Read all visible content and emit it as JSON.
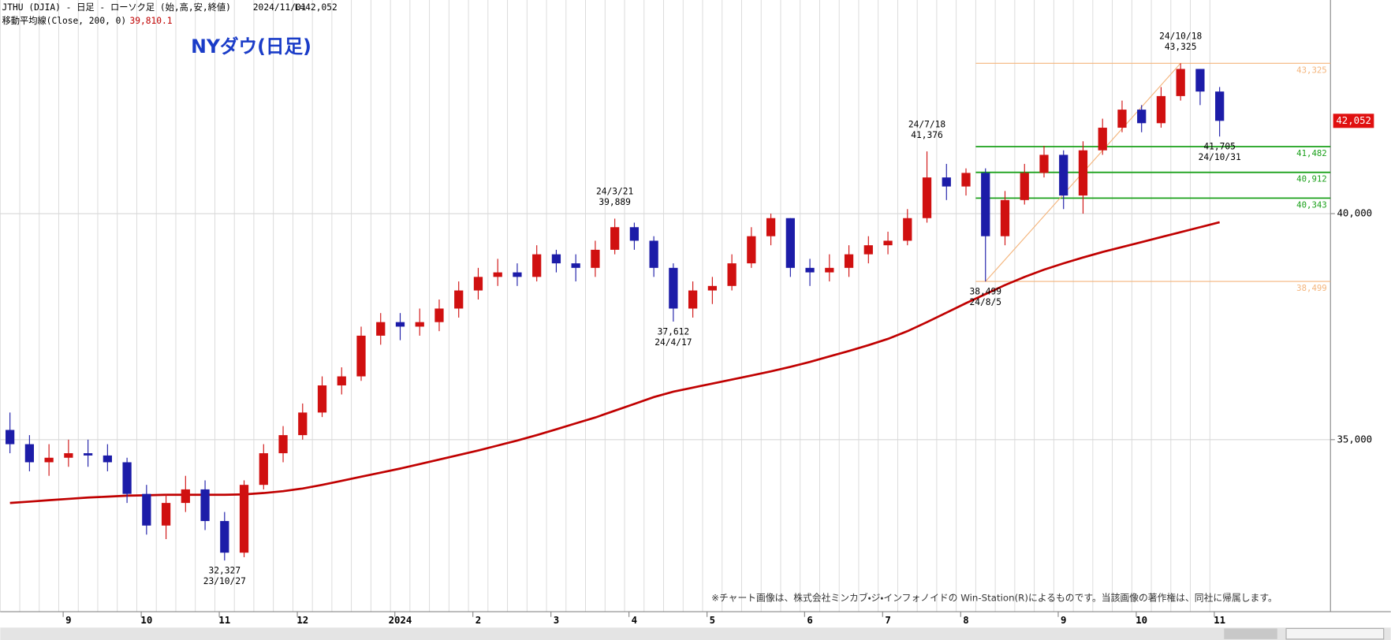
{
  "chart_data": {
    "type": "candlestick",
    "title": "NYダウ(日足)",
    "header": {
      "symbol": "JTHU (DJIA) - 日足 - ローソク足 (始,高,安,終値)",
      "date": "2024/11/01",
      "last": "L=42,052"
    },
    "note": "※チャート画像は、株式会社ミンカブ・ジ・インフォノイドの Win-Station(R)によるものです。当該画像の著作権は、同社に帰属します。",
    "categories": [
      null,
      null,
      null,
      "9",
      null,
      null,
      null,
      "10",
      null,
      null,
      null,
      "11",
      null,
      null,
      null,
      "12",
      null,
      null,
      null,
      null,
      "2024",
      null,
      null,
      null,
      "2",
      null,
      null,
      null,
      "3",
      null,
      null,
      null,
      "4",
      null,
      null,
      null,
      "5",
      null,
      null,
      null,
      null,
      "6",
      null,
      null,
      null,
      "7",
      null,
      null,
      null,
      "8",
      null,
      null,
      null,
      null,
      "9",
      null,
      null,
      null,
      "10",
      null,
      null,
      null,
      "11"
    ],
    "open": [
      35215,
      34900,
      34500,
      34600,
      34700,
      34650,
      34500,
      33800,
      33100,
      33600,
      33900,
      33200,
      32500,
      34000,
      34700,
      35100,
      35600,
      36200,
      36400,
      37300,
      37600,
      37500,
      37600,
      37900,
      38300,
      38600,
      38700,
      38600,
      39100,
      38900,
      38800,
      39200,
      39700,
      39400,
      38800,
      37900,
      38300,
      38400,
      38900,
      39500,
      39900,
      38800,
      38700,
      38800,
      39100,
      39300,
      39400,
      39900,
      40800,
      40600,
      40900,
      39500,
      40300,
      40900,
      41300,
      40400,
      41400,
      41900,
      42300,
      42000,
      42600,
      43200,
      42700
    ],
    "high": [
      35600,
      35100,
      34900,
      35000,
      35000,
      34900,
      34600,
      34000,
      33800,
      34200,
      34100,
      33400,
      34100,
      34900,
      35300,
      35800,
      36400,
      36600,
      37500,
      37800,
      37800,
      37900,
      38100,
      38500,
      38800,
      39000,
      38900,
      39300,
      39200,
      39100,
      39400,
      39889,
      39800,
      39500,
      38900,
      38500,
      38600,
      39100,
      39700,
      40000,
      39900,
      39000,
      39100,
      39300,
      39500,
      39600,
      40100,
      41376,
      41100,
      41000,
      41000,
      40500,
      41100,
      41500,
      41400,
      41600,
      42100,
      42500,
      42400,
      42800,
      43325,
      43200,
      42800
    ],
    "low": [
      34700,
      34300,
      34200,
      34400,
      34400,
      34300,
      33600,
      32900,
      32800,
      33400,
      33000,
      32327,
      32400,
      33900,
      34500,
      35000,
      35500,
      36000,
      36300,
      37100,
      37200,
      37300,
      37400,
      37700,
      38100,
      38400,
      38400,
      38500,
      38700,
      38500,
      38600,
      39100,
      39200,
      38600,
      37612,
      37700,
      38000,
      38300,
      38800,
      39300,
      38600,
      38400,
      38500,
      38600,
      38900,
      39100,
      39300,
      39800,
      40300,
      40400,
      38499,
      39300,
      40200,
      40800,
      40100,
      40000,
      41300,
      41800,
      41800,
      41900,
      42500,
      42400,
      41705
    ],
    "close": [
      34900,
      34500,
      34600,
      34700,
      34650,
      34500,
      33800,
      33100,
      33600,
      33900,
      33200,
      32500,
      34000,
      34700,
      35100,
      35600,
      36200,
      36400,
      37300,
      37600,
      37500,
      37600,
      37900,
      38300,
      38600,
      38700,
      38600,
      39100,
      38900,
      38800,
      39200,
      39700,
      39400,
      38800,
      37900,
      38300,
      38400,
      38900,
      39500,
      39900,
      38800,
      38700,
      38800,
      39100,
      39300,
      39400,
      39900,
      40800,
      40600,
      40900,
      39500,
      40300,
      40900,
      41300,
      40400,
      41400,
      41900,
      42300,
      42000,
      42600,
      43200,
      42700,
      42052
    ],
    "up_color": "#d01010",
    "down_color": "#1c1ca8",
    "series": [
      {
        "name": "移動平均線(Close, 200, 0)",
        "color": "#c00000",
        "last_label": "39,810.1",
        "values": [
          33600,
          33630,
          33660,
          33690,
          33720,
          33740,
          33760,
          33770,
          33780,
          33780,
          33780,
          33780,
          33790,
          33820,
          33860,
          33920,
          34000,
          34090,
          34180,
          34270,
          34360,
          34460,
          34560,
          34660,
          34760,
          34870,
          34980,
          35100,
          35230,
          35360,
          35490,
          35640,
          35790,
          35940,
          36060,
          36150,
          36240,
          36330,
          36420,
          36510,
          36610,
          36720,
          36840,
          36960,
          37090,
          37230,
          37400,
          37600,
          37810,
          38020,
          38220,
          38420,
          38600,
          38760,
          38900,
          39030,
          39150,
          39260,
          39370,
          39480,
          39590,
          39700,
          39810.1
        ]
      }
    ],
    "ylim": [
      31196,
      44725
    ],
    "yticks": [
      {
        "value": 35000,
        "label": "35,000"
      },
      {
        "value": 40000,
        "label": "40,000"
      }
    ],
    "last_price": {
      "value": 42052,
      "label": "42,052"
    },
    "levels": [
      {
        "value": 43325,
        "label": "43,325",
        "color": "#f4b57c"
      },
      {
        "value": 41482,
        "label": "41,482",
        "color": "#1aa01a"
      },
      {
        "value": 40912,
        "label": "40,912",
        "color": "#1aa01a"
      },
      {
        "value": 40343,
        "label": "40,343",
        "color": "#1aa01a"
      },
      {
        "value": 38499,
        "label": "38,499",
        "color": "#f4b57c"
      }
    ],
    "annotations": [
      {
        "date": "23/10/27",
        "value": 32327,
        "label": "32,327"
      },
      {
        "date": "24/3/21",
        "value": 39889,
        "label": "39,889"
      },
      {
        "date": "24/4/17",
        "value": 37612,
        "label": "37,612"
      },
      {
        "date": "24/7/18",
        "value": 41376,
        "label": "41,376"
      },
      {
        "date": "24/8/5",
        "value": 38499,
        "label": "38,499"
      },
      {
        "date": "24/10/18",
        "value": 43325,
        "label": "43,325"
      },
      {
        "date": "24/10/31",
        "value": 41705,
        "label": "41,705"
      }
    ],
    "grid": true
  }
}
